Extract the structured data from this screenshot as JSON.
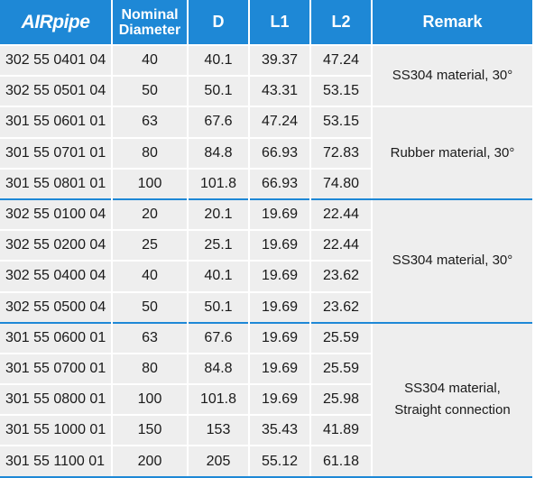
{
  "header": {
    "brand": "AIRpipe",
    "nominal_line1": "Nominal",
    "nominal_line2": "Diameter",
    "d": "D",
    "l1": "L1",
    "l2": "L2",
    "remark": "Remark"
  },
  "rows": [
    {
      "code": "302 55 0401 04",
      "nominal": "40",
      "d": "40.1",
      "l1": "39.37",
      "l2": "47.24"
    },
    {
      "code": "302 55 0501 04",
      "nominal": "50",
      "d": "50.1",
      "l1": "43.31",
      "l2": "53.15"
    },
    {
      "code": "301 55 0601 01",
      "nominal": "63",
      "d": "67.6",
      "l1": "47.24",
      "l2": "53.15"
    },
    {
      "code": "301 55 0701 01",
      "nominal": "80",
      "d": "84.8",
      "l1": "66.93",
      "l2": "72.83"
    },
    {
      "code": "301 55 0801 01",
      "nominal": "100",
      "d": "101.8",
      "l1": "66.93",
      "l2": "74.80"
    },
    {
      "code": "302 55 0100 04",
      "nominal": "20",
      "d": "20.1",
      "l1": "19.69",
      "l2": "22.44"
    },
    {
      "code": "302 55 0200 04",
      "nominal": "25",
      "d": "25.1",
      "l1": "19.69",
      "l2": "22.44"
    },
    {
      "code": "302 55 0400 04",
      "nominal": "40",
      "d": "40.1",
      "l1": "19.69",
      "l2": "23.62"
    },
    {
      "code": "302 55 0500 04",
      "nominal": "50",
      "d": "50.1",
      "l1": "19.69",
      "l2": "23.62"
    },
    {
      "code": "301 55 0600 01",
      "nominal": "63",
      "d": "67.6",
      "l1": "19.69",
      "l2": "25.59"
    },
    {
      "code": "301 55 0700 01",
      "nominal": "80",
      "d": "84.8",
      "l1": "19.69",
      "l2": "25.59"
    },
    {
      "code": "301 55 0800 01",
      "nominal": "100",
      "d": "101.8",
      "l1": "19.69",
      "l2": "25.98"
    },
    {
      "code": "301 55 1000 01",
      "nominal": "150",
      "d": "153",
      "l1": "35.43",
      "l2": "41.89"
    },
    {
      "code": "301 55 1100 01",
      "nominal": "200",
      "d": "205",
      "l1": "55.12",
      "l2": "61.18"
    }
  ],
  "remarks": {
    "a": "SS304 material, 30°",
    "b": "Rubber material, 30°",
    "c": "SS304 material, 30°",
    "d_line1": "SS304 material,",
    "d_line2": "Straight connection"
  },
  "colors": {
    "header_bg": "#1e88d6",
    "row_bg": "#eeeeee"
  }
}
